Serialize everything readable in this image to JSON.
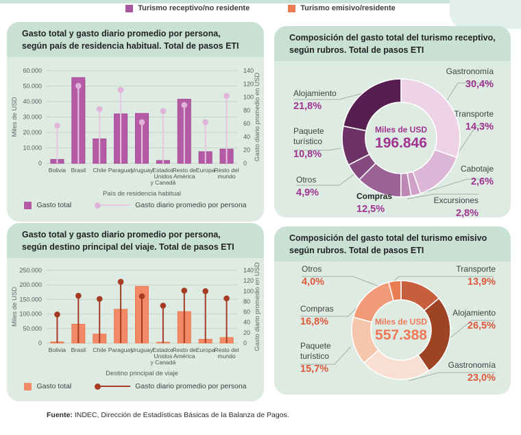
{
  "header_legend": {
    "receptivo_label": "Turismo receptivo/no residente",
    "receptivo_color": "#a757a0",
    "emisivo_label": "Turismo emisivo/residente",
    "emisivo_color": "#ec7b52"
  },
  "palette": {
    "receptivo_accent": "#a03390",
    "emisivo_accent": "#e0583a",
    "emisivo_center": "#ef7857"
  },
  "footer": {
    "source_bold": "Fuente:",
    "source_text": " INDEC, Dirección de Estadísticas Básicas de la Balanza de Pagos."
  },
  "chart_data": [
    {
      "id": "receptivo_bar",
      "type": "bar",
      "title_lines": [
        "Gasto total y gasto diario promedio por persona,",
        "según país de residencia habitual. Total de pasos ETI"
      ],
      "categories": [
        "Bolivia",
        "Brasil",
        "Chile",
        "Paraguay",
        "Uruguay",
        "Estados Unidos y Canadá",
        "Resto de América",
        "Europa",
        "Resto del mundo"
      ],
      "category_lines": [
        [
          "Bolivia"
        ],
        [
          "Brasil"
        ],
        [
          "Chile"
        ],
        [
          "Paraguay"
        ],
        [
          "Uruguay"
        ],
        [
          "Estados",
          "Unidos",
          "y Canadá"
        ],
        [
          "Resto de",
          "América"
        ],
        [
          "Europa"
        ],
        [
          "Resto del",
          "mundo"
        ]
      ],
      "series": [
        {
          "name": "Gasto total",
          "type": "bar",
          "axis": "left",
          "values": [
            2500,
            55500,
            15800,
            32000,
            32300,
            1800,
            41500,
            7500,
            9200
          ],
          "color": "#b55ba6",
          "border": "#a34697"
        },
        {
          "name": "Gasto diario promedio por persona",
          "type": "lollipop",
          "axis": "right",
          "values": [
            57,
            117,
            82,
            111,
            62,
            79,
            88,
            62,
            102
          ],
          "color": "#e8c7e1",
          "dot_color": "#e0b3da"
        }
      ],
      "left_axis": {
        "label": "Miles de USD",
        "max": 60000,
        "ticks": [
          "60.000",
          "50.000",
          "40.000",
          "30.000",
          "20.000",
          "10.000",
          "0"
        ]
      },
      "right_axis": {
        "label": "Gasto diario promedio en USD",
        "max": 140,
        "ticks": [
          "140",
          "120",
          "100",
          "80",
          "60",
          "40",
          "20",
          "0"
        ]
      },
      "xlabel": "País de residencia habitual"
    },
    {
      "id": "receptivo_donut",
      "type": "donut",
      "title_lines": [
        "Composición del gasto total del turismo receptivo,",
        "según rubros. Total de pasos ETI"
      ],
      "center_label": "Miles de USD",
      "center_value": "196.846",
      "slices": [
        {
          "label": "Gastronomía",
          "pct": 30.4,
          "pct_label": "30,4%",
          "color": "#eed3e6"
        },
        {
          "label": "Transporte",
          "pct": 14.3,
          "pct_label": "14,3%",
          "color": "#ddb5d6"
        },
        {
          "label": "Cabotaje",
          "pct": 2.6,
          "pct_label": "2,6%",
          "color": "#cfa0c8"
        },
        {
          "label": "Excursiones",
          "pct": 2.8,
          "pct_label": "2,8%",
          "color": "#bd87b3"
        },
        {
          "label": "Compras",
          "pct": 12.5,
          "pct_label": "12,5%",
          "color": "#9a6295"
        },
        {
          "label": "Otros",
          "pct": 4.9,
          "pct_label": "4,9%",
          "color": "#854b80"
        },
        {
          "label": "Paquete turístico",
          "pct": 10.8,
          "pct_label": "10,8%",
          "color": "#6d3268"
        },
        {
          "label": "Alojamiento",
          "pct": 21.8,
          "pct_label": "21,8%",
          "color": "#571f50"
        }
      ]
    },
    {
      "id": "emisivo_bar",
      "type": "bar",
      "title_lines": [
        "Gasto total y gasto diario promedio por persona,",
        "según destino principal del viaje. Total de pasos ETI"
      ],
      "categories": [
        "Bolivia",
        "Brasil",
        "Chile",
        "Paraguay",
        "Uruguay",
        "Estados Unidos y Canadá",
        "Resto de América",
        "Europa",
        "Resto del mundo"
      ],
      "category_lines": [
        [
          "Bolivia"
        ],
        [
          "Brasil"
        ],
        [
          "Chile"
        ],
        [
          "Paraguay"
        ],
        [
          "Uruguay"
        ],
        [
          "Estados",
          "Unidos",
          "y Canadá"
        ],
        [
          "Resto de",
          "América"
        ],
        [
          "Europa"
        ],
        [
          "Resto del",
          "mundo"
        ]
      ],
      "series": [
        {
          "name": "Gasto total",
          "type": "bar",
          "axis": "left",
          "values": [
            4000,
            65000,
            31000,
            116000,
            195000,
            3000,
            108000,
            13000,
            19000
          ],
          "color": "#f28a68",
          "border": "#ee7a55"
        },
        {
          "name": "Gasto diario promedio por persona",
          "type": "lollipop",
          "axis": "right",
          "values": [
            55,
            91,
            85,
            118,
            90,
            72,
            101,
            100,
            86
          ],
          "color": "#a53b23",
          "dot_color": "#a53b23"
        }
      ],
      "left_axis": {
        "label": "Miles de USD",
        "max": 250000,
        "ticks": [
          "250.000",
          "200.000",
          "150.000",
          "100.000",
          "50.000",
          "0"
        ]
      },
      "right_axis": {
        "label": "Gasto diario promedio en USD",
        "max": 140,
        "ticks": [
          "140",
          "120",
          "100",
          "80",
          "60",
          "40",
          "20",
          "0"
        ]
      },
      "xlabel": "Destino principal de viaje"
    },
    {
      "id": "emisivo_donut",
      "type": "donut",
      "title_lines": [
        "Composición del gasto total del turismo emisivo",
        "según rubros. Total de pasos ETI"
      ],
      "center_label": "Miles de USD",
      "center_value": "557.388",
      "slices": [
        {
          "label": "Transporte",
          "pct": 13.9,
          "pct_label": "13,9%",
          "color": "#c75f3d"
        },
        {
          "label": "Alojamiento",
          "pct": 26.5,
          "pct_label": "26,5%",
          "color": "#9e4424"
        },
        {
          "label": "Gastronomía",
          "pct": 23.0,
          "pct_label": "23,0%",
          "color": "#f9ded2"
        },
        {
          "label": "Paquete turístico",
          "pct": 15.7,
          "pct_label": "15,7%",
          "color": "#f5c5ac"
        },
        {
          "label": "Compras",
          "pct": 16.8,
          "pct_label": "16,8%",
          "color": "#f09a78"
        },
        {
          "label": "Otros",
          "pct": 4.0,
          "pct_label": "4,0%",
          "color": "#ea7c52"
        }
      ]
    }
  ]
}
